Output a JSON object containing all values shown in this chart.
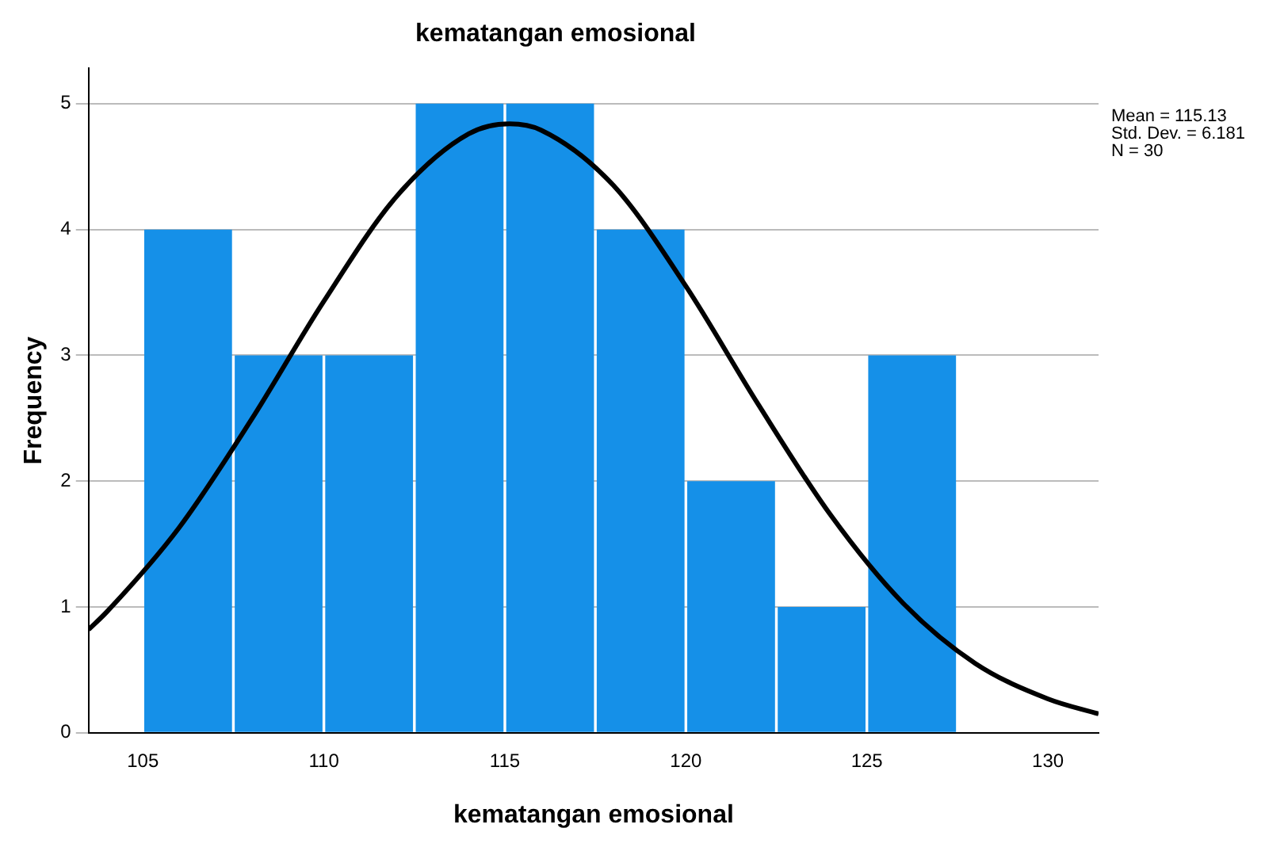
{
  "chart_data": {
    "type": "histogram",
    "title": "kematangan emosional",
    "xlabel": "kematangan emosional",
    "ylabel": "Frequency",
    "bins": [
      105,
      107.5,
      110,
      112.5,
      115,
      117.5,
      120,
      122.5,
      125,
      127.5
    ],
    "values": [
      4,
      3,
      3,
      5,
      5,
      4,
      2,
      1,
      3
    ],
    "color": "#1590e8",
    "series": [
      {
        "type": "line",
        "color": "#000000",
        "x": [
          103.5,
          104,
          106,
          108,
          110,
          112,
          114,
          115.13,
          116,
          118,
          120,
          122,
          124,
          126,
          128,
          130,
          131.4
        ],
        "values": [
          0.82,
          0.96,
          1.63,
          2.49,
          3.43,
          4.26,
          4.76,
          4.84,
          4.79,
          4.35,
          3.55,
          2.61,
          1.73,
          1.03,
          0.55,
          0.27,
          0.15
        ]
      }
    ],
    "xlim": [
      103.5,
      131.4
    ],
    "xticks": [
      105,
      110,
      115,
      120,
      125,
      130
    ],
    "ylim": [
      0,
      5.28
    ],
    "yticks": [
      0,
      1,
      2,
      3,
      4,
      5
    ],
    "grid": "y",
    "legend": false,
    "marker": "none",
    "annotations": [
      "Mean = 115.13",
      "Std. Dev. = 6.181",
      "N = 30"
    ]
  }
}
